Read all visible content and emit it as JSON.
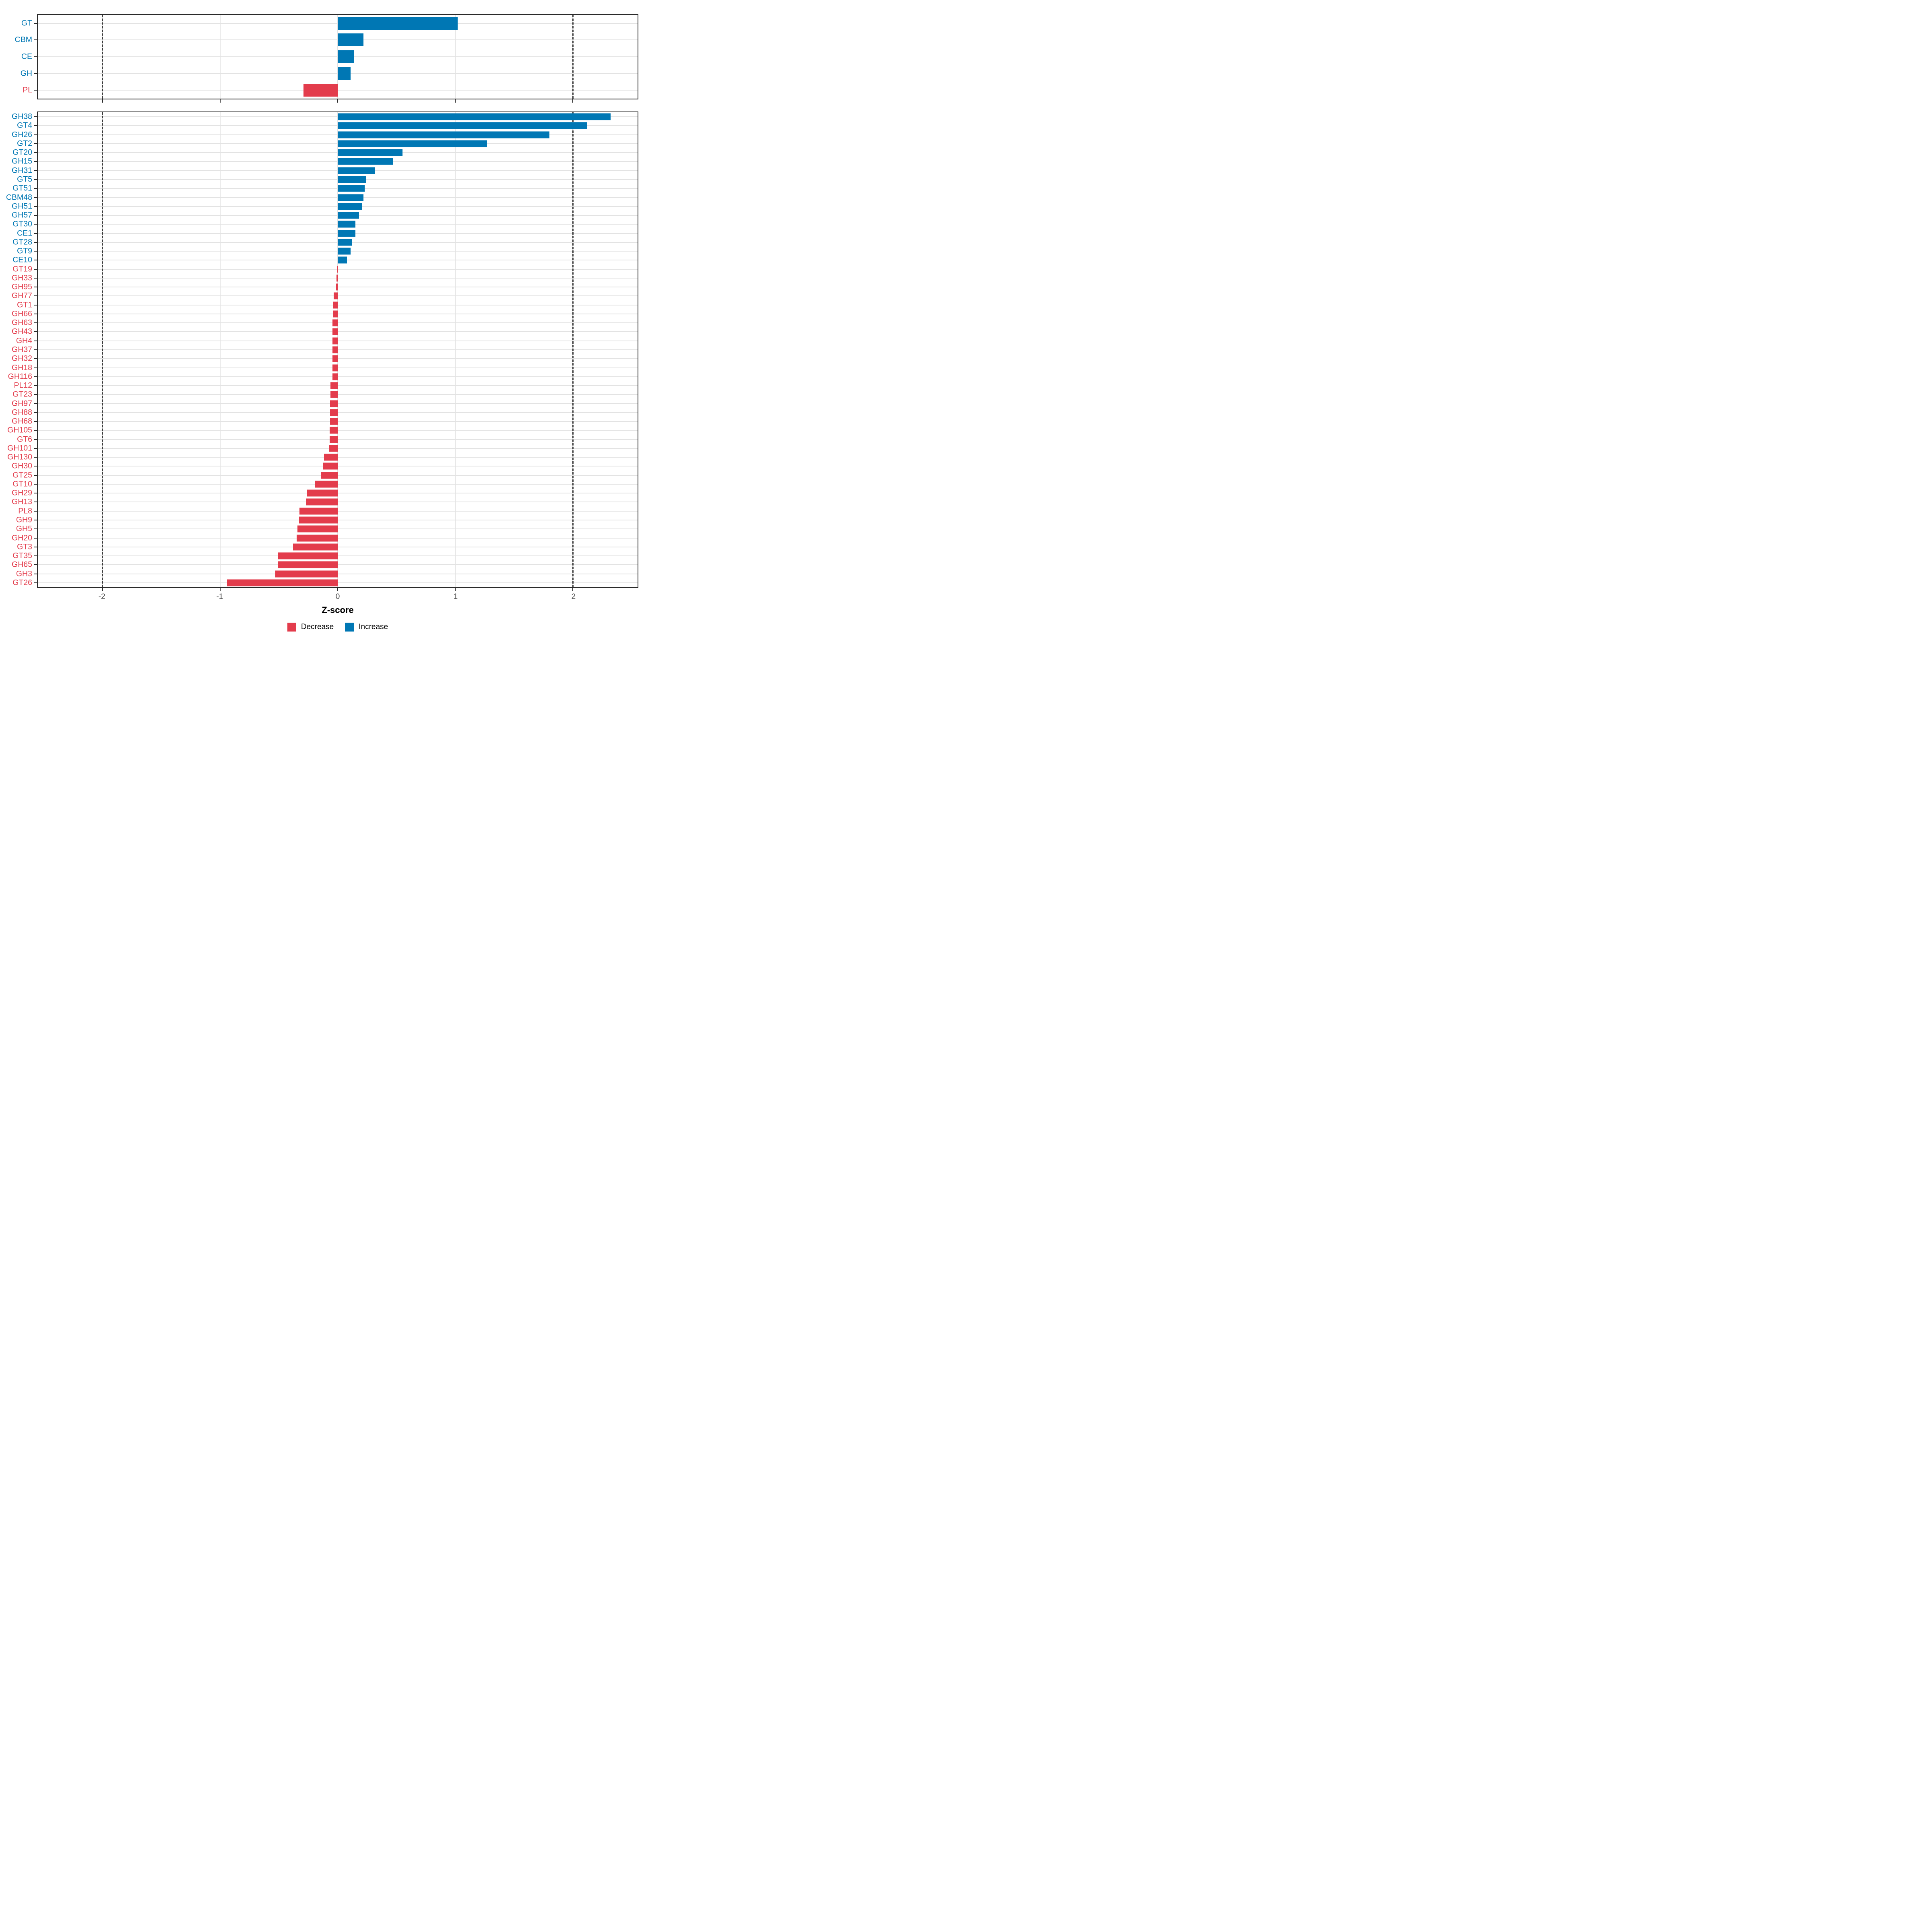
{
  "axis": {
    "label": "Z-score",
    "ticks": [
      -2,
      -1,
      0,
      1,
      2
    ],
    "range": [
      -2.55,
      2.55
    ],
    "dashed_lines": [
      -2,
      2
    ]
  },
  "legend": {
    "items": [
      {
        "label": "Decrease",
        "color": "#E33C4C"
      },
      {
        "label": "Increase",
        "color": "#0077B4"
      }
    ]
  },
  "colors": {
    "increase": "#0077B4",
    "decrease": "#E33C4C",
    "grid": "#e3e3e3",
    "dashed_line": "#3b3b3b",
    "axis_text": "#4d4d4d"
  },
  "chart_data": [
    {
      "type": "bar",
      "orientation": "horizontal",
      "panel": "cazyme-class-summary",
      "categories": [
        "GT",
        "CBM",
        "CE",
        "GH",
        "PL"
      ],
      "values": [
        1.02,
        0.22,
        0.14,
        0.11,
        -0.29
      ],
      "xlabel": "Z-score",
      "xlim": [
        -2.55,
        2.55
      ],
      "grid": true,
      "legend_position": "bottom"
    },
    {
      "type": "bar",
      "orientation": "horizontal",
      "panel": "cazyme-family-detail",
      "categories": [
        "GH38",
        "GT4",
        "GH26",
        "GT2",
        "GT20",
        "GH15",
        "GH31",
        "GT5",
        "GT51",
        "CBM48",
        "GH51",
        "GH57",
        "GT30",
        "CE1",
        "GT28",
        "GT9",
        "CE10",
        "GT19",
        "GH33",
        "GH95",
        "GH77",
        "GT1",
        "GH66",
        "GH63",
        "GH43",
        "GH4",
        "GH37",
        "GH32",
        "GH18",
        "GH116",
        "PL12",
        "GT23",
        "GH97",
        "GH88",
        "GH68",
        "GH105",
        "GT6",
        "GH101",
        "GH130",
        "GH30",
        "GT25",
        "GT10",
        "GH29",
        "GH13",
        "PL8",
        "GH9",
        "GH5",
        "GH20",
        "GT3",
        "GT35",
        "GH65",
        "GH3",
        "GT26"
      ],
      "values": [
        2.32,
        2.12,
        1.8,
        1.27,
        0.55,
        0.47,
        0.32,
        0.24,
        0.23,
        0.22,
        0.21,
        0.18,
        0.15,
        0.15,
        0.12,
        0.11,
        0.08,
        -0.005,
        -0.01,
        -0.015,
        -0.035,
        -0.04,
        -0.042,
        -0.044,
        -0.044,
        -0.045,
        -0.045,
        -0.045,
        -0.046,
        -0.046,
        -0.06,
        -0.062,
        -0.064,
        -0.065,
        -0.066,
        -0.068,
        -0.07,
        -0.073,
        -0.118,
        -0.127,
        -0.14,
        -0.19,
        -0.26,
        -0.27,
        -0.325,
        -0.33,
        -0.343,
        -0.35,
        -0.38,
        -0.51,
        -0.51,
        -0.53,
        -0.94
      ],
      "xlabel": "Z-score",
      "xlim": [
        -2.55,
        2.55
      ],
      "grid": true,
      "legend_position": "bottom"
    }
  ]
}
